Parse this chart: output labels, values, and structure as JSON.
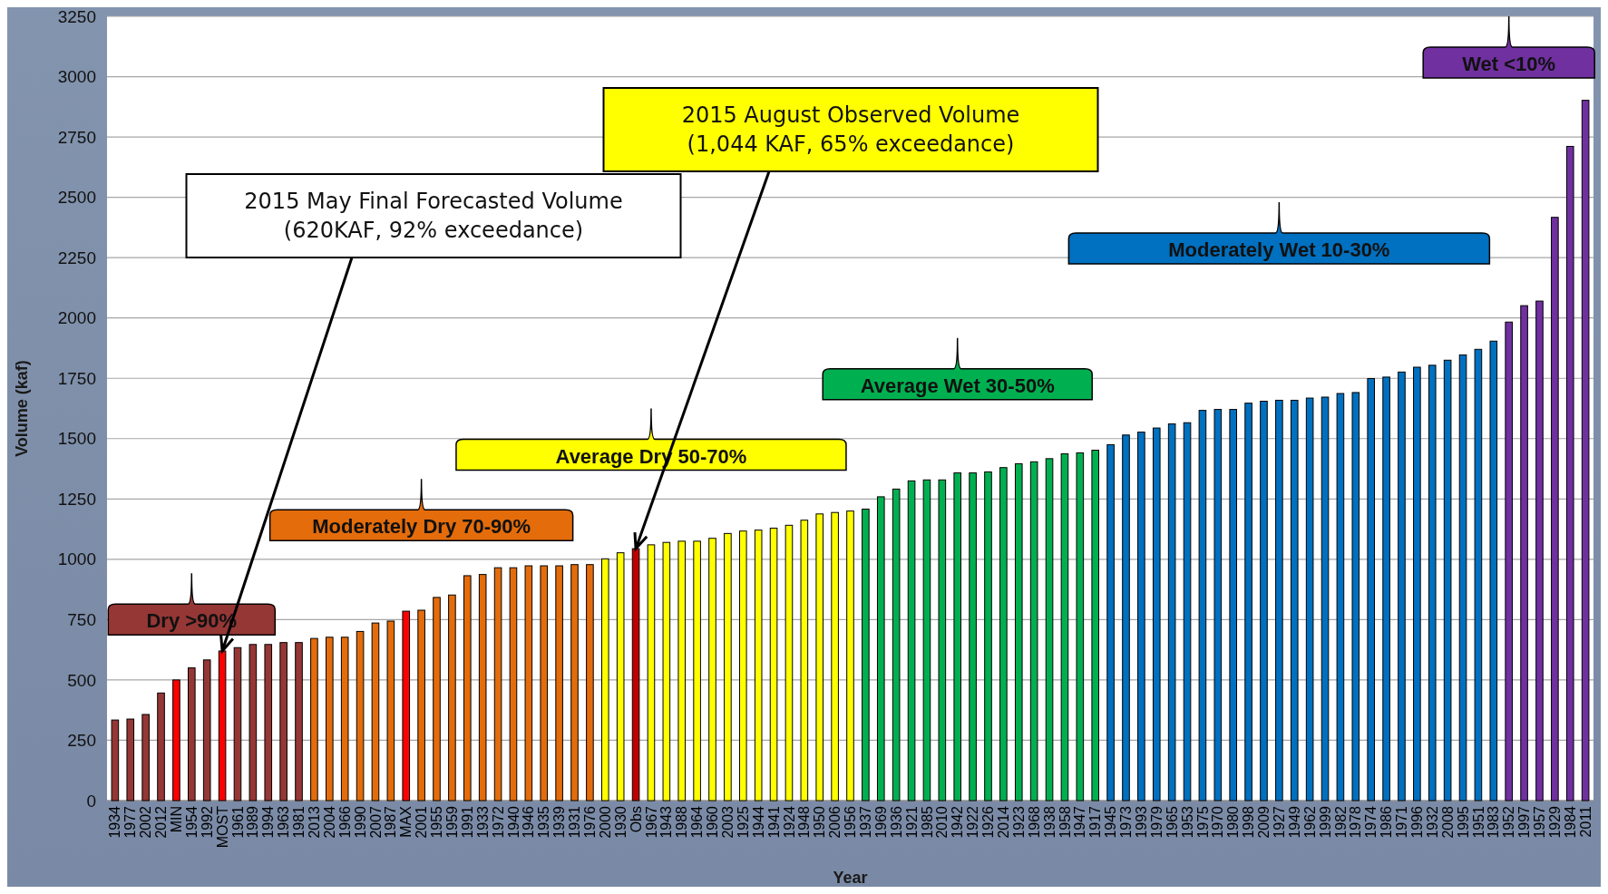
{
  "chart_data": {
    "type": "bar",
    "xlabel": "Year",
    "ylabel": "Volume (kaf)",
    "categories": [
      "1934",
      "1977",
      "2002",
      "2012",
      "MIN",
      "1954",
      "1992",
      "MOST",
      "1961",
      "1989",
      "1994",
      "1963",
      "1981",
      "2013",
      "2004",
      "1966",
      "1990",
      "2007",
      "1987",
      "MAX",
      "2001",
      "1955",
      "1959",
      "1991",
      "1933",
      "1972",
      "1940",
      "1946",
      "1935",
      "1939",
      "1931",
      "1976",
      "2000",
      "1930",
      "Obs",
      "1967",
      "1943",
      "1988",
      "1964",
      "1960",
      "2003",
      "1925",
      "1944",
      "1941",
      "1924",
      "1948",
      "1950",
      "2006",
      "1956",
      "1937",
      "1969",
      "1936",
      "1921",
      "1985",
      "2010",
      "1942",
      "1922",
      "1926",
      "2014",
      "1923",
      "1968",
      "1938",
      "1958",
      "1947",
      "1917",
      "1945",
      "1973",
      "1993",
      "1979",
      "1965",
      "1953",
      "1975",
      "1970",
      "1980",
      "1998",
      "2009",
      "1927",
      "1949",
      "1962",
      "1999",
      "1982",
      "1978",
      "1974",
      "1986",
      "1971",
      "1996",
      "1932",
      "2008",
      "1995",
      "1951",
      "1983",
      "1952",
      "1997",
      "1957",
      "1929",
      "1984",
      "2011"
    ],
    "values": [
      334,
      338,
      357,
      446,
      500,
      550,
      583,
      620,
      634,
      647,
      647,
      655,
      655,
      672,
      677,
      677,
      701,
      736,
      744,
      785,
      789,
      842,
      852,
      932,
      937,
      965,
      965,
      973,
      973,
      973,
      978,
      978,
      1002,
      1027,
      1044,
      1060,
      1070,
      1075,
      1075,
      1087,
      1107,
      1117,
      1121,
      1129,
      1141,
      1162,
      1188,
      1194,
      1200,
      1208,
      1259,
      1291,
      1325,
      1329,
      1329,
      1358,
      1358,
      1362,
      1380,
      1396,
      1404,
      1417,
      1437,
      1441,
      1452,
      1475,
      1515,
      1527,
      1544,
      1561,
      1566,
      1617,
      1621,
      1621,
      1647,
      1655,
      1659,
      1659,
      1668,
      1672,
      1687,
      1691,
      1749,
      1755,
      1776,
      1796,
      1804,
      1825,
      1847,
      1870,
      1904,
      1983,
      2051,
      2070,
      2417,
      2711,
      2902
    ],
    "colors": [
      "#953735",
      "#953735",
      "#953735",
      "#953735",
      "#ff0000",
      "#953735",
      "#953735",
      "#ff0000",
      "#953735",
      "#953735",
      "#953735",
      "#953735",
      "#953735",
      "#e46c0a",
      "#e46c0a",
      "#e46c0a",
      "#e46c0a",
      "#e46c0a",
      "#e46c0a",
      "#ff0000",
      "#e46c0a",
      "#e46c0a",
      "#e46c0a",
      "#e46c0a",
      "#e46c0a",
      "#e46c0a",
      "#e46c0a",
      "#e46c0a",
      "#e46c0a",
      "#e46c0a",
      "#e46c0a",
      "#e46c0a",
      "#ffff00",
      "#ffff00",
      "#c00000",
      "#ffff00",
      "#ffff00",
      "#ffff00",
      "#ffff00",
      "#ffff00",
      "#ffff00",
      "#ffff00",
      "#ffff00",
      "#ffff00",
      "#ffff00",
      "#ffff00",
      "#ffff00",
      "#ffff00",
      "#ffff00",
      "#00b050",
      "#00b050",
      "#00b050",
      "#00b050",
      "#00b050",
      "#00b050",
      "#00b050",
      "#00b050",
      "#00b050",
      "#00b050",
      "#00b050",
      "#00b050",
      "#00b050",
      "#00b050",
      "#00b050",
      "#00b050",
      "#0070c0",
      "#0070c0",
      "#0070c0",
      "#0070c0",
      "#0070c0",
      "#0070c0",
      "#0070c0",
      "#0070c0",
      "#0070c0",
      "#0070c0",
      "#0070c0",
      "#0070c0",
      "#0070c0",
      "#0070c0",
      "#0070c0",
      "#0070c0",
      "#0070c0",
      "#0070c0",
      "#0070c0",
      "#0070c0",
      "#0070c0",
      "#0070c0",
      "#0070c0",
      "#0070c0",
      "#0070c0",
      "#0070c0",
      "#7030a0",
      "#7030a0",
      "#7030a0",
      "#7030a0",
      "#7030a0",
      "#7030a0"
    ],
    "ylim": [
      0,
      3250
    ],
    "yticks": [
      0,
      250,
      500,
      750,
      1000,
      1250,
      1500,
      1750,
      2000,
      2250,
      2500,
      2750,
      3000,
      3250
    ],
    "grid": "y",
    "annotations": [
      {
        "text": "2015 May Final Forecasted Volume\n(620KAF, 92% exceedance)",
        "x": "MOST",
        "y": 620
      },
      {
        "text": "2015 August Observed Volume\n(1,044 KAF, 65% exceedance)",
        "x": "Obs",
        "y": 1044
      },
      "Dry >90%",
      "Moderately Dry 70-90%",
      "Average Dry 50-70%",
      "Average Wet 30-50%",
      "Moderately Wet 10-30%",
      "Wet <10%"
    ]
  }
}
